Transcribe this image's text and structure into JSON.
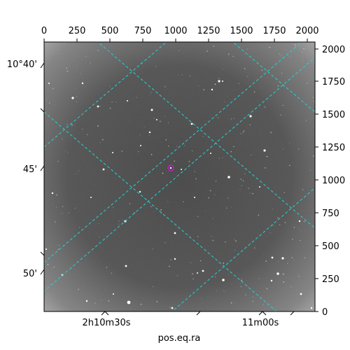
{
  "axes": {
    "x_pixel_ticks": [
      "0",
      "250",
      "500",
      "750",
      "1000",
      "1250",
      "1500",
      "1750",
      "2000"
    ],
    "y_pixel_ticks": [
      "0",
      "250",
      "500",
      "750",
      "1000",
      "1250",
      "1500",
      "1750",
      "2000"
    ],
    "dec_ticks": [
      "10°40'",
      "45'",
      "50'"
    ],
    "ra_ticks": [
      "2h10m30s",
      "11m00s"
    ],
    "ra_label": "pos.eq.ra"
  },
  "image": {
    "background": "#4a4a4a",
    "vignette": "#9a9a9a",
    "grid_color": "#22d3d3",
    "marker_color": "#c020c0",
    "star_color": "#ffffff"
  }
}
